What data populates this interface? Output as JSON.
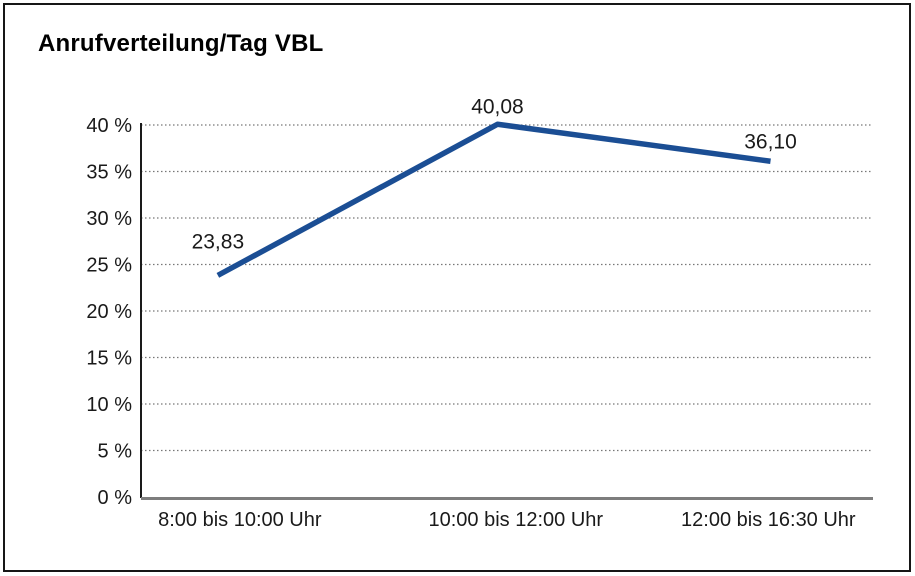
{
  "frame": {
    "border_color": "#161616",
    "background": "#ffffff"
  },
  "chart_data": {
    "type": "line",
    "title": "Anrufverteilung/Tag VBL",
    "categories": [
      "8:00 bis 10:00 Uhr",
      "10:00 bis 12:00 Uhr",
      "12:00 bis 16:30 Uhr"
    ],
    "values": [
      23.83,
      40.08,
      36.1
    ],
    "value_labels": [
      "23,83",
      "40,08",
      "36,10"
    ],
    "xlabel": "",
    "ylabel": "",
    "ylim": [
      0,
      40
    ],
    "ytick_step": 5,
    "yticks": [
      {
        "value": 0,
        "label": "0 %"
      },
      {
        "value": 5,
        "label": "5 %"
      },
      {
        "value": 10,
        "label": "10 %"
      },
      {
        "value": 15,
        "label": "15 %"
      },
      {
        "value": 20,
        "label": "20 %"
      },
      {
        "value": 25,
        "label": "25 %"
      },
      {
        "value": 30,
        "label": "30 %"
      },
      {
        "value": 35,
        "label": "35 %"
      },
      {
        "value": 40,
        "label": "40 %"
      }
    ],
    "grid": "horizontal-dotted",
    "legend": "none",
    "line_color": "#1b4e94",
    "grid_color": "#777777",
    "yaxis_color": "#1a1a1a",
    "baseline_color": "#7d7d7d",
    "text_color": "#1a1a1a"
  }
}
